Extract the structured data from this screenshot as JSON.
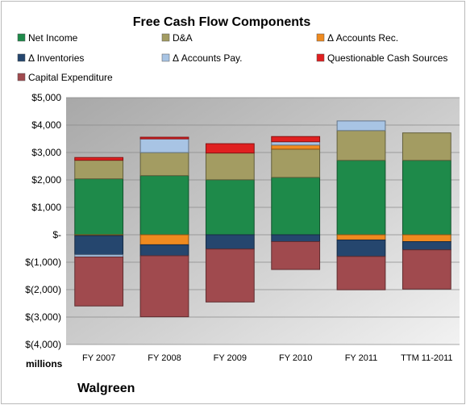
{
  "chart_data": {
    "type": "bar",
    "stacked": true,
    "title": "Free Cash Flow Components",
    "unit_label": "millions",
    "company": "Walgreen",
    "categories": [
      "FY 2007",
      "FY 2008",
      "FY 2009",
      "FY 2010",
      "FY 2011",
      "TTM 11-2011"
    ],
    "ylim": [
      -4000,
      5000
    ],
    "yticks": [
      {
        "value": 5000,
        "label": "$5,000"
      },
      {
        "value": 4000,
        "label": "$4,000"
      },
      {
        "value": 3000,
        "label": "$3,000"
      },
      {
        "value": 2000,
        "label": "$2,000"
      },
      {
        "value": 1000,
        "label": "$1,000"
      },
      {
        "value": 0,
        "label": "$-"
      },
      {
        "value": -1000,
        "label": "$(1,000)"
      },
      {
        "value": -2000,
        "label": "$(2,000)"
      },
      {
        "value": -3000,
        "label": "$(3,000)"
      },
      {
        "value": -4000,
        "label": "$(4,000)"
      }
    ],
    "grid": true,
    "legend_position": "top",
    "series": [
      {
        "name": "Net Income",
        "color": "#1e8a4a",
        "values": [
          2041,
          2157,
          2006,
          2091,
          2714,
          2714
        ]
      },
      {
        "name": "D&A",
        "color": "#a39c62",
        "values": [
          676,
          840,
          975,
          1030,
          1086,
          1000
        ]
      },
      {
        "name": "Δ Accounts Rec.",
        "color": "#ef8a1f",
        "values": [
          -30,
          -365,
          0,
          150,
          -190,
          -250
        ]
      },
      {
        "name": "Δ Inventories",
        "color": "#25466e",
        "values": [
          -700,
          -400,
          -520,
          -250,
          -600,
          -300
        ]
      },
      {
        "name": "Δ Accounts Pay.",
        "color": "#a8c4e4",
        "values": [
          -80,
          500,
          0,
          120,
          350,
          0
        ]
      },
      {
        "name": "Questionable Cash Sources",
        "color": "#e02020",
        "values": [
          100,
          60,
          340,
          190,
          0,
          0
        ]
      },
      {
        "name": "Capital Expenditure",
        "color": "#a04a4e",
        "values": [
          -1785,
          -2225,
          -1930,
          -1015,
          -1215,
          -1430
        ]
      }
    ]
  }
}
